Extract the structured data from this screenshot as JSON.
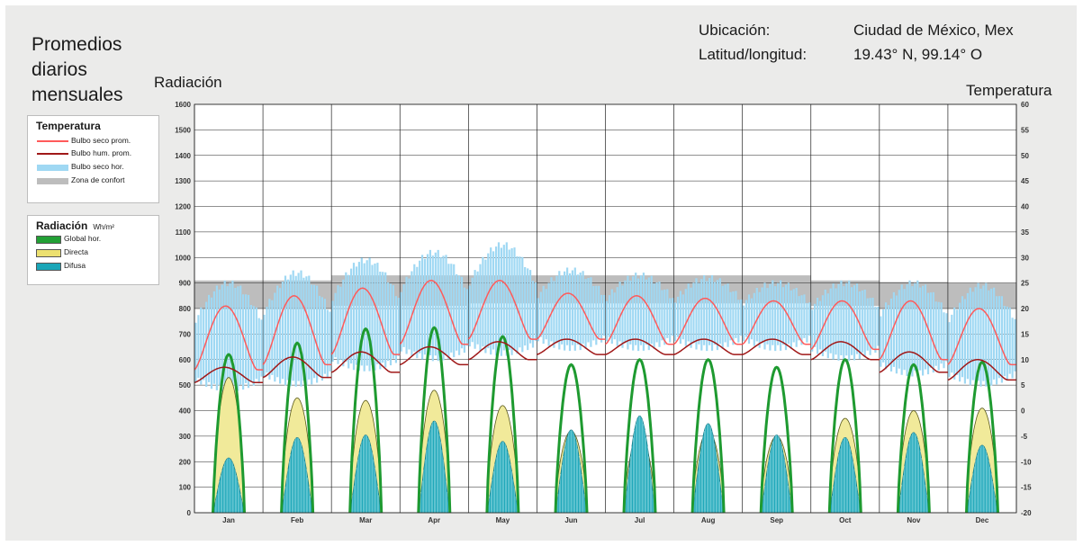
{
  "header": {
    "title": "Promedios diarios mensuales",
    "location_label": "Ubicación:",
    "location_value": "Ciudad de México, Mex",
    "latlon_label": "Latitud/longitud:",
    "latlon_value": "19.43° N, 99.14° O"
  },
  "legend_temp": {
    "title": "Temperatura",
    "items": [
      {
        "label": "Bulbo seco prom.",
        "color": "#ff5a5a"
      },
      {
        "label": "Bulbo hum. prom.",
        "color": "#a01818"
      },
      {
        "label": "Bulbo seco hor.",
        "color": "#9fd8f3"
      },
      {
        "label": "Zona de confort",
        "color": "#bdbdbd"
      }
    ]
  },
  "legend_rad": {
    "title": "Radiación",
    "unit": "Wh/m²",
    "items": [
      {
        "label": "Global hor.",
        "color": "#22a035"
      },
      {
        "label": "Directa",
        "color": "#ece070"
      },
      {
        "label": "Difusa",
        "color": "#1aa6b8"
      }
    ]
  },
  "chart_data": {
    "type": "line",
    "ylabel": "Radiación",
    "y2label": "Temperatura",
    "ylim": [
      0,
      1600
    ],
    "y2lim": [
      -20,
      60
    ],
    "yticks": [
      0,
      100,
      200,
      300,
      400,
      500,
      600,
      700,
      800,
      900,
      1000,
      1100,
      1200,
      1300,
      1400,
      1500,
      1600
    ],
    "y2ticks": [
      -20,
      -15,
      -10,
      -5,
      0,
      5,
      10,
      15,
      20,
      25,
      30,
      35,
      40,
      45,
      50,
      55,
      60
    ],
    "categories": [
      "Jan",
      "Feb",
      "Mar",
      "Apr",
      "May",
      "Jun",
      "Jul",
      "Aug",
      "Sep",
      "Oct",
      "Nov",
      "Dec"
    ],
    "comfort_zone_temp": [
      [
        20,
        25.5
      ],
      [
        20,
        25.5
      ],
      [
        20.5,
        26.5
      ],
      [
        20.5,
        26.5
      ],
      [
        21,
        26.5
      ],
      [
        21,
        26.5
      ],
      [
        21,
        26.5
      ],
      [
        21,
        26.5
      ],
      [
        21,
        26.5
      ],
      [
        20.5,
        25.5
      ],
      [
        20,
        25.2
      ],
      [
        20,
        25
      ]
    ],
    "series": [
      {
        "name": "Bulbo seco prom.",
        "unit": "°C",
        "min": [
          8,
          9,
          11,
          13,
          14,
          14,
          13,
          13,
          13,
          12,
          10,
          9
        ],
        "max": [
          20.5,
          22.5,
          24,
          25.5,
          25.5,
          23,
          22.5,
          22,
          21.5,
          21.5,
          21.5,
          20
        ]
      },
      {
        "name": "Bulbo hum. prom.",
        "unit": "°C",
        "min": [
          5.5,
          6.5,
          7.5,
          9,
          10,
          11,
          11,
          11,
          11,
          10,
          7.5,
          6
        ],
        "max": [
          8.5,
          10.5,
          11.5,
          12.5,
          13.5,
          14,
          14,
          14,
          14,
          13.5,
          11.5,
          10
        ]
      },
      {
        "name": "Bulbo seco hor.",
        "unit": "°C",
        "min": [
          4,
          5,
          8,
          10,
          11,
          12,
          12,
          12,
          12,
          10,
          7,
          5
        ],
        "max": [
          25,
          27,
          29.5,
          31,
          32.5,
          27.5,
          26.5,
          26,
          25,
          25,
          25,
          24.5
        ]
      },
      {
        "name": "Global hor.",
        "unit": "Wh/m²",
        "peak": [
          620,
          665,
          720,
          725,
          690,
          580,
          600,
          600,
          570,
          600,
          580,
          590
        ]
      },
      {
        "name": "Directa",
        "unit": "Wh/m²",
        "peak": [
          530,
          450,
          440,
          480,
          420,
          320,
          300,
          320,
          300,
          370,
          400,
          410
        ]
      },
      {
        "name": "Difusa",
        "unit": "Wh/m²",
        "peak": [
          215,
          295,
          305,
          360,
          280,
          325,
          380,
          350,
          305,
          295,
          315,
          265
        ]
      }
    ]
  }
}
